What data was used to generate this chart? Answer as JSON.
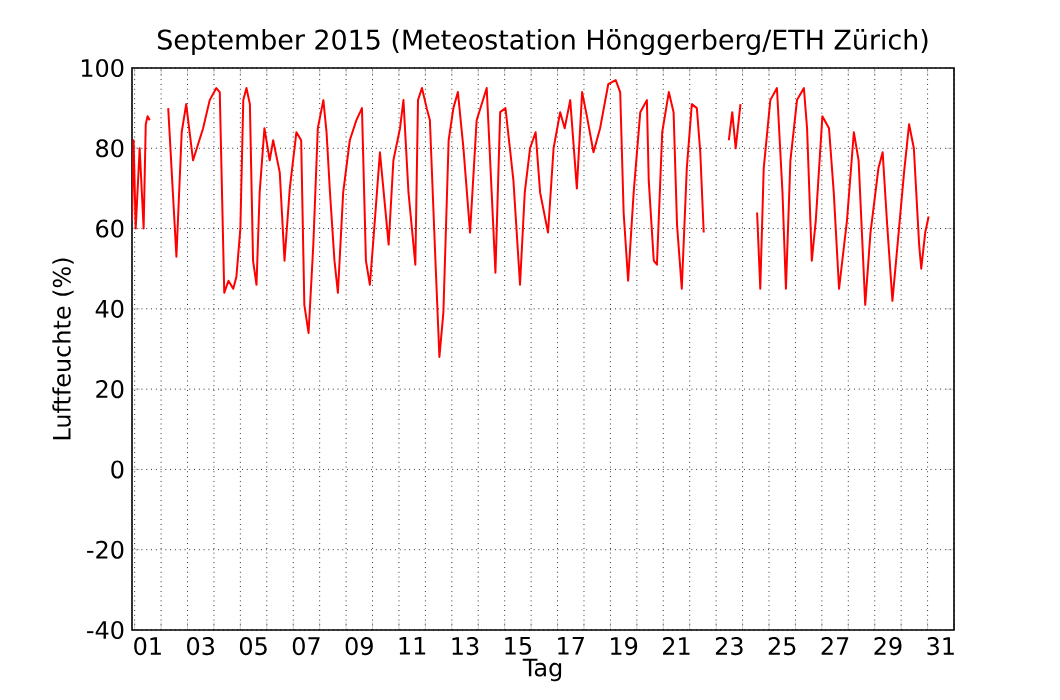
{
  "chart_data": {
    "type": "line",
    "title": "September 2015  (Meteostation Hönggerberg/ETH Zürich)",
    "xlabel": "Tag",
    "ylabel": "Luftfeuchte (%)",
    "x": [
      0.9,
      0.96,
      1.04,
      1.19,
      1.34,
      1.42,
      1.49,
      1.57,
      1.9,
      2.27,
      2.58,
      2.78,
      2.95,
      3.21,
      3.59,
      3.84,
      4.09,
      4.22,
      4.39,
      4.55,
      4.73,
      4.85,
      5.0,
      5.11,
      5.23,
      5.36,
      5.48,
      5.61,
      5.73,
      5.91,
      6.11,
      6.24,
      6.49,
      6.67,
      6.87,
      7.12,
      7.3,
      7.42,
      7.58,
      7.76,
      7.93,
      8.14,
      8.26,
      8.39,
      8.56,
      8.69,
      8.89,
      9.14,
      9.39,
      9.6,
      9.75,
      9.9,
      10.03,
      10.28,
      10.61,
      10.79,
      11.04,
      11.17,
      11.36,
      11.62,
      11.72,
      11.87,
      12.05,
      12.17,
      12.38,
      12.53,
      12.68,
      12.88,
      13.06,
      13.23,
      13.44,
      13.69,
      13.94,
      14.32,
      14.45,
      14.65,
      14.83,
      15.03,
      15.33,
      15.58,
      15.76,
      15.96,
      16.17,
      16.34,
      16.64,
      16.85,
      17.1,
      17.27,
      17.48,
      17.73,
      17.93,
      18.11,
      18.36,
      18.61,
      18.92,
      19.2,
      19.37,
      19.5,
      19.67,
      19.88,
      20.13,
      20.38,
      20.45,
      20.64,
      20.76,
      20.96,
      21.21,
      21.39,
      21.52,
      21.7,
      21.89,
      22.08,
      22.27,
      22.4,
      22.53,
      23.0,
      23.48,
      23.61,
      23.74,
      23.92,
      24.2,
      24.55,
      24.67,
      24.8,
      25.05,
      25.3,
      25.51,
      25.64,
      25.81,
      26.06,
      26.32,
      26.44,
      26.62,
      26.77,
      27.02,
      27.27,
      27.45,
      27.65,
      27.95,
      28.21,
      28.39,
      28.64,
      28.84,
      29.14,
      29.3,
      29.47,
      29.67,
      29.85,
      30.11,
      30.3,
      30.48,
      30.68,
      30.76,
      30.91,
      31.04
    ],
    "series": [
      {
        "color": "#ff0000",
        "values": [
          62,
          82,
          60,
          80,
          60,
          86,
          88,
          87,
          null,
          90,
          53,
          84,
          91,
          77,
          85,
          92,
          95,
          94,
          44,
          47,
          45,
          48,
          60,
          92,
          95,
          91,
          52,
          46,
          69,
          85,
          77,
          82,
          74,
          52,
          70,
          84,
          82,
          41,
          34,
          56,
          85,
          92,
          84,
          69,
          52,
          44,
          69,
          82,
          87,
          90,
          52,
          46,
          57,
          79,
          56,
          77,
          85,
          92,
          69,
          51,
          92,
          95,
          90,
          87,
          52,
          28,
          39,
          82,
          90,
          94,
          80,
          59,
          87,
          95,
          77,
          49,
          89,
          90,
          72,
          46,
          69,
          80,
          84,
          69,
          59,
          80,
          89,
          85,
          92,
          70,
          94,
          88,
          79,
          85,
          96,
          97,
          94,
          64,
          47,
          69,
          89,
          92,
          72,
          52,
          51,
          84,
          94,
          89,
          61,
          45,
          75,
          91,
          90,
          79,
          59,
          null,
          82,
          89,
          80,
          91,
          null,
          64,
          45,
          75,
          92,
          95,
          69,
          45,
          77,
          92,
          95,
          85,
          52,
          62,
          88,
          85,
          69,
          45,
          62,
          84,
          77,
          41,
          59,
          75,
          79,
          61,
          42,
          55,
          74,
          86,
          80,
          56,
          50,
          59,
          63
        ]
      }
    ],
    "xlim": [
      0.9,
      32
    ],
    "ylim": [
      -40,
      100
    ],
    "xticks": [
      {
        "value": 1,
        "label": null
      },
      {
        "value": 1.5,
        "label": "01"
      },
      {
        "value": 2,
        "label": null
      },
      {
        "value": 3,
        "label": null
      },
      {
        "value": 3.5,
        "label": "03"
      },
      {
        "value": 4,
        "label": null
      },
      {
        "value": 5,
        "label": null
      },
      {
        "value": 5.5,
        "label": "05"
      },
      {
        "value": 6,
        "label": null
      },
      {
        "value": 7,
        "label": null
      },
      {
        "value": 7.5,
        "label": "07"
      },
      {
        "value": 8,
        "label": null
      },
      {
        "value": 9,
        "label": null
      },
      {
        "value": 9.5,
        "label": "09"
      },
      {
        "value": 10,
        "label": null
      },
      {
        "value": 11,
        "label": null
      },
      {
        "value": 11.5,
        "label": "11"
      },
      {
        "value": 12,
        "label": null
      },
      {
        "value": 13,
        "label": null
      },
      {
        "value": 13.5,
        "label": "13"
      },
      {
        "value": 14,
        "label": null
      },
      {
        "value": 15,
        "label": null
      },
      {
        "value": 15.5,
        "label": "15"
      },
      {
        "value": 16,
        "label": null
      },
      {
        "value": 17,
        "label": null
      },
      {
        "value": 17.5,
        "label": "17"
      },
      {
        "value": 18,
        "label": null
      },
      {
        "value": 19,
        "label": null
      },
      {
        "value": 19.5,
        "label": "19"
      },
      {
        "value": 20,
        "label": null
      },
      {
        "value": 21,
        "label": null
      },
      {
        "value": 21.5,
        "label": "21"
      },
      {
        "value": 22,
        "label": null
      },
      {
        "value": 23,
        "label": null
      },
      {
        "value": 23.5,
        "label": "23"
      },
      {
        "value": 24,
        "label": null
      },
      {
        "value": 25,
        "label": null
      },
      {
        "value": 25.5,
        "label": "25"
      },
      {
        "value": 26,
        "label": null
      },
      {
        "value": 27,
        "label": null
      },
      {
        "value": 27.5,
        "label": "27"
      },
      {
        "value": 28,
        "label": null
      },
      {
        "value": 29,
        "label": null
      },
      {
        "value": 29.5,
        "label": "29"
      },
      {
        "value": 30,
        "label": null
      },
      {
        "value": 31,
        "label": null
      },
      {
        "value": 31.5,
        "label": "31"
      },
      {
        "value": 32,
        "label": null
      }
    ],
    "yticks": [
      -40,
      -20,
      0,
      20,
      40,
      60,
      80,
      100
    ],
    "grid": true,
    "marker": "none",
    "line_style": "solid"
  }
}
